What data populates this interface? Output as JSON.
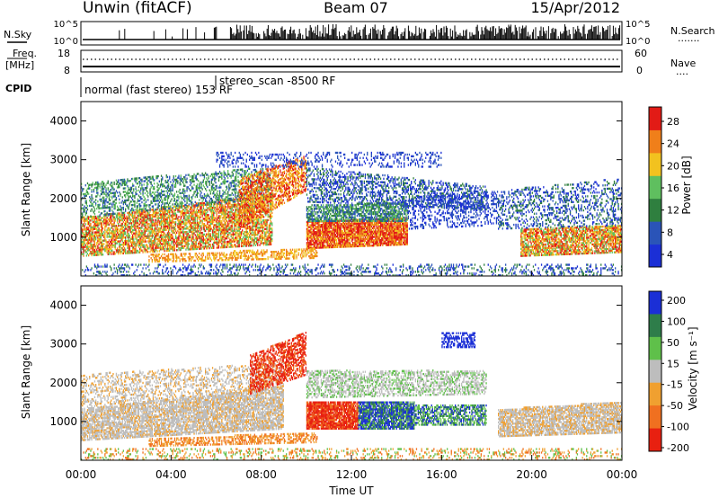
{
  "header": {
    "station": "Unwin (fitACF)",
    "beam": "Beam 07",
    "date": "15/Apr/2012"
  },
  "strips": {
    "nsky_label": "N.Sky",
    "nsky_ticks": [
      "10^5",
      "10^0"
    ],
    "nsearch_label": "N.Search",
    "nsearch_ticks": [
      "10^5",
      "10^0"
    ],
    "freq_label": "Freq.",
    "freq_unit": "[MHz]",
    "freq_ticks": [
      "18",
      "8"
    ],
    "nave_label": "Nave",
    "nave_ticks": [
      "60",
      "0"
    ],
    "cpid_label": "CPID",
    "cpid_modes": [
      "normal (fast stereo) 153 RF",
      "stereo_scan -8500 RF"
    ]
  },
  "chart_data": [
    {
      "type": "heatmap",
      "title": "",
      "ylabel": "Slant Range [km]",
      "xlabel": "",
      "x_range_hours": [
        0,
        24
      ],
      "ylim": [
        0,
        4500
      ],
      "yticks": [
        "1000",
        "2000",
        "3000",
        "4000"
      ],
      "colorbar": {
        "label": "Power [dB]",
        "ticks": [
          "4",
          "8",
          "12",
          "16",
          "20",
          "24",
          "28"
        ],
        "range": [
          0,
          30
        ],
        "colors": [
          "#1b2fd6",
          "#2a54b8",
          "#2f7f3f",
          "#5fbf5f",
          "#f2c21f",
          "#f07f1a",
          "#e21b16"
        ]
      }
    },
    {
      "type": "heatmap",
      "title": "",
      "ylabel": "Slant Range [km]",
      "xlabel": "Time UT",
      "x_range_hours": [
        0,
        24
      ],
      "xticks": [
        "00:00",
        "04:00",
        "08:00",
        "12:00",
        "16:00",
        "20:00",
        "00:00"
      ],
      "ylim": [
        0,
        4500
      ],
      "yticks": [
        "1000",
        "2000",
        "3000",
        "4000"
      ],
      "colorbar": {
        "label": "Velocity [m s⁻¹]",
        "ticks": [
          "200",
          "100",
          "50",
          "15",
          "-15",
          "-50",
          "-100",
          "-200"
        ],
        "range": [
          -250,
          250
        ],
        "colors": [
          "#1b2fd6",
          "#2e7d4a",
          "#5fc04a",
          "#bdbdbd",
          "#f0a030",
          "#f07020",
          "#e82010"
        ]
      }
    }
  ]
}
